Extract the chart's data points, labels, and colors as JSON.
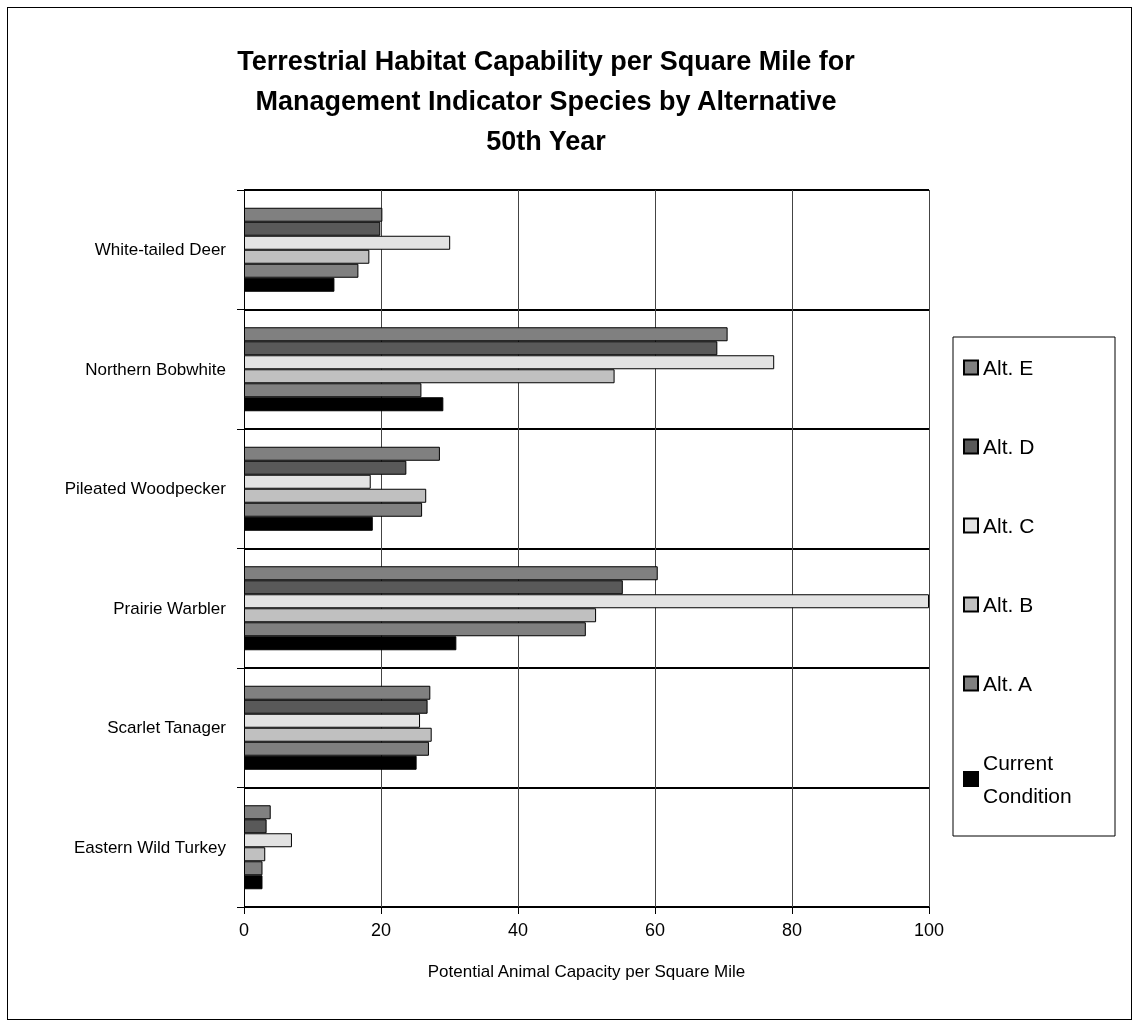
{
  "chart_data": {
    "type": "bar",
    "orientation": "horizontal",
    "title": "Terrestrial Habitat Capability per Square Mile for\nManagement Indicator Species by Alternative\n50th Year",
    "xlabel": "Potential Animal Capacity per Square Mile",
    "categories": [
      "White-tailed Deer",
      "Northern Bobwhite",
      "Pileated Woodpecker",
      "Prairie Warbler",
      "Scarlet Tanager",
      "Eastern Wild Turkey"
    ],
    "series": [
      {
        "name": "Alt. E",
        "color": "#808080",
        "values": [
          20.2,
          70.6,
          28.6,
          60.4,
          27.2,
          3.9
        ]
      },
      {
        "name": "Alt. D",
        "color": "#595959",
        "values": [
          19.9,
          69.1,
          23.7,
          55.3,
          26.8,
          3.3
        ]
      },
      {
        "name": "Alt. C",
        "color": "#e3e3e3",
        "values": [
          30.1,
          77.4,
          18.5,
          100,
          25.7,
          7.0
        ]
      },
      {
        "name": "Alt. B",
        "color": "#c0c0c0",
        "values": [
          18.3,
          54.1,
          26.6,
          51.4,
          27.4,
          3.1
        ]
      },
      {
        "name": "Alt. A",
        "color": "#808080",
        "values": [
          16.7,
          25.9,
          26.0,
          49.9,
          27.0,
          2.7
        ]
      },
      {
        "name": "Current Condition",
        "color": "#000000",
        "values": [
          13.2,
          29.1,
          18.8,
          31.0,
          25.2,
          2.7
        ]
      }
    ],
    "xlim": [
      0,
      100
    ],
    "xticks": [
      0,
      20,
      40,
      60,
      80,
      100
    ],
    "grid": true,
    "legend": "right"
  }
}
